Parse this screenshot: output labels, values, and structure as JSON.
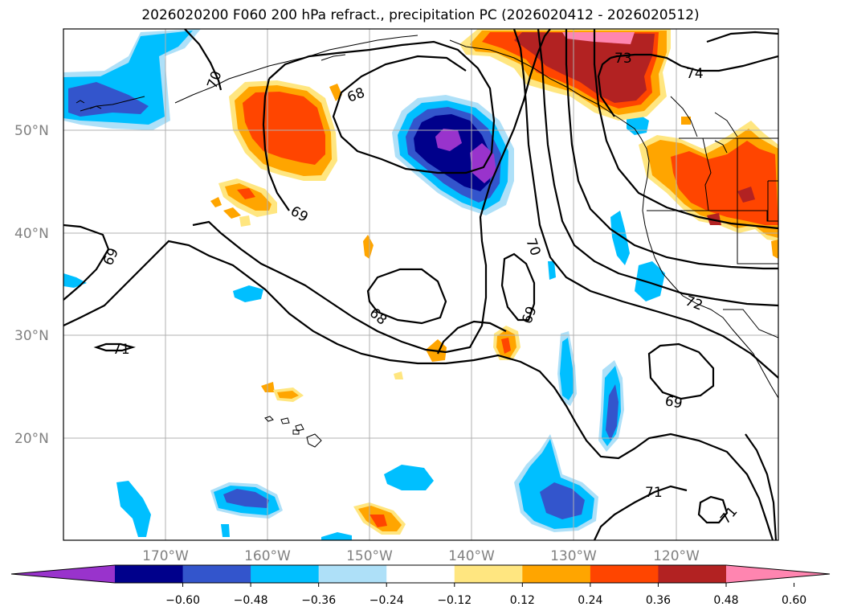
{
  "title": "2026020200 F060 200 hPa refract., precipitation PC (2026020412 - 2026020512)",
  "map": {
    "lon_range": [
      -180,
      -110
    ],
    "lat_range": [
      10,
      60
    ],
    "lat_labels": [
      "20°N",
      "30°N",
      "40°N",
      "50°N"
    ],
    "lon_labels": [
      "170°W",
      "160°W",
      "150°W",
      "140°W",
      "130°W",
      "120°W"
    ],
    "contour_labels": [
      "68",
      "68",
      "69",
      "69",
      "69",
      "69",
      "70",
      "70",
      "71",
      "71",
      "71",
      "72",
      "73",
      "74"
    ]
  },
  "colorbar": {
    "ticks": [
      "−0.60",
      "−0.48",
      "−0.36",
      "−0.24",
      "−0.12",
      "0.12",
      "0.24",
      "0.36",
      "0.48",
      "0.60"
    ],
    "colors": [
      "#9933cc",
      "#00008b",
      "#3355cc",
      "#00bfff",
      "#aee0f8",
      "#ffffff",
      "#ffe680",
      "#ffa500",
      "#ff4500",
      "#b22222",
      "#ff85b0"
    ]
  }
}
